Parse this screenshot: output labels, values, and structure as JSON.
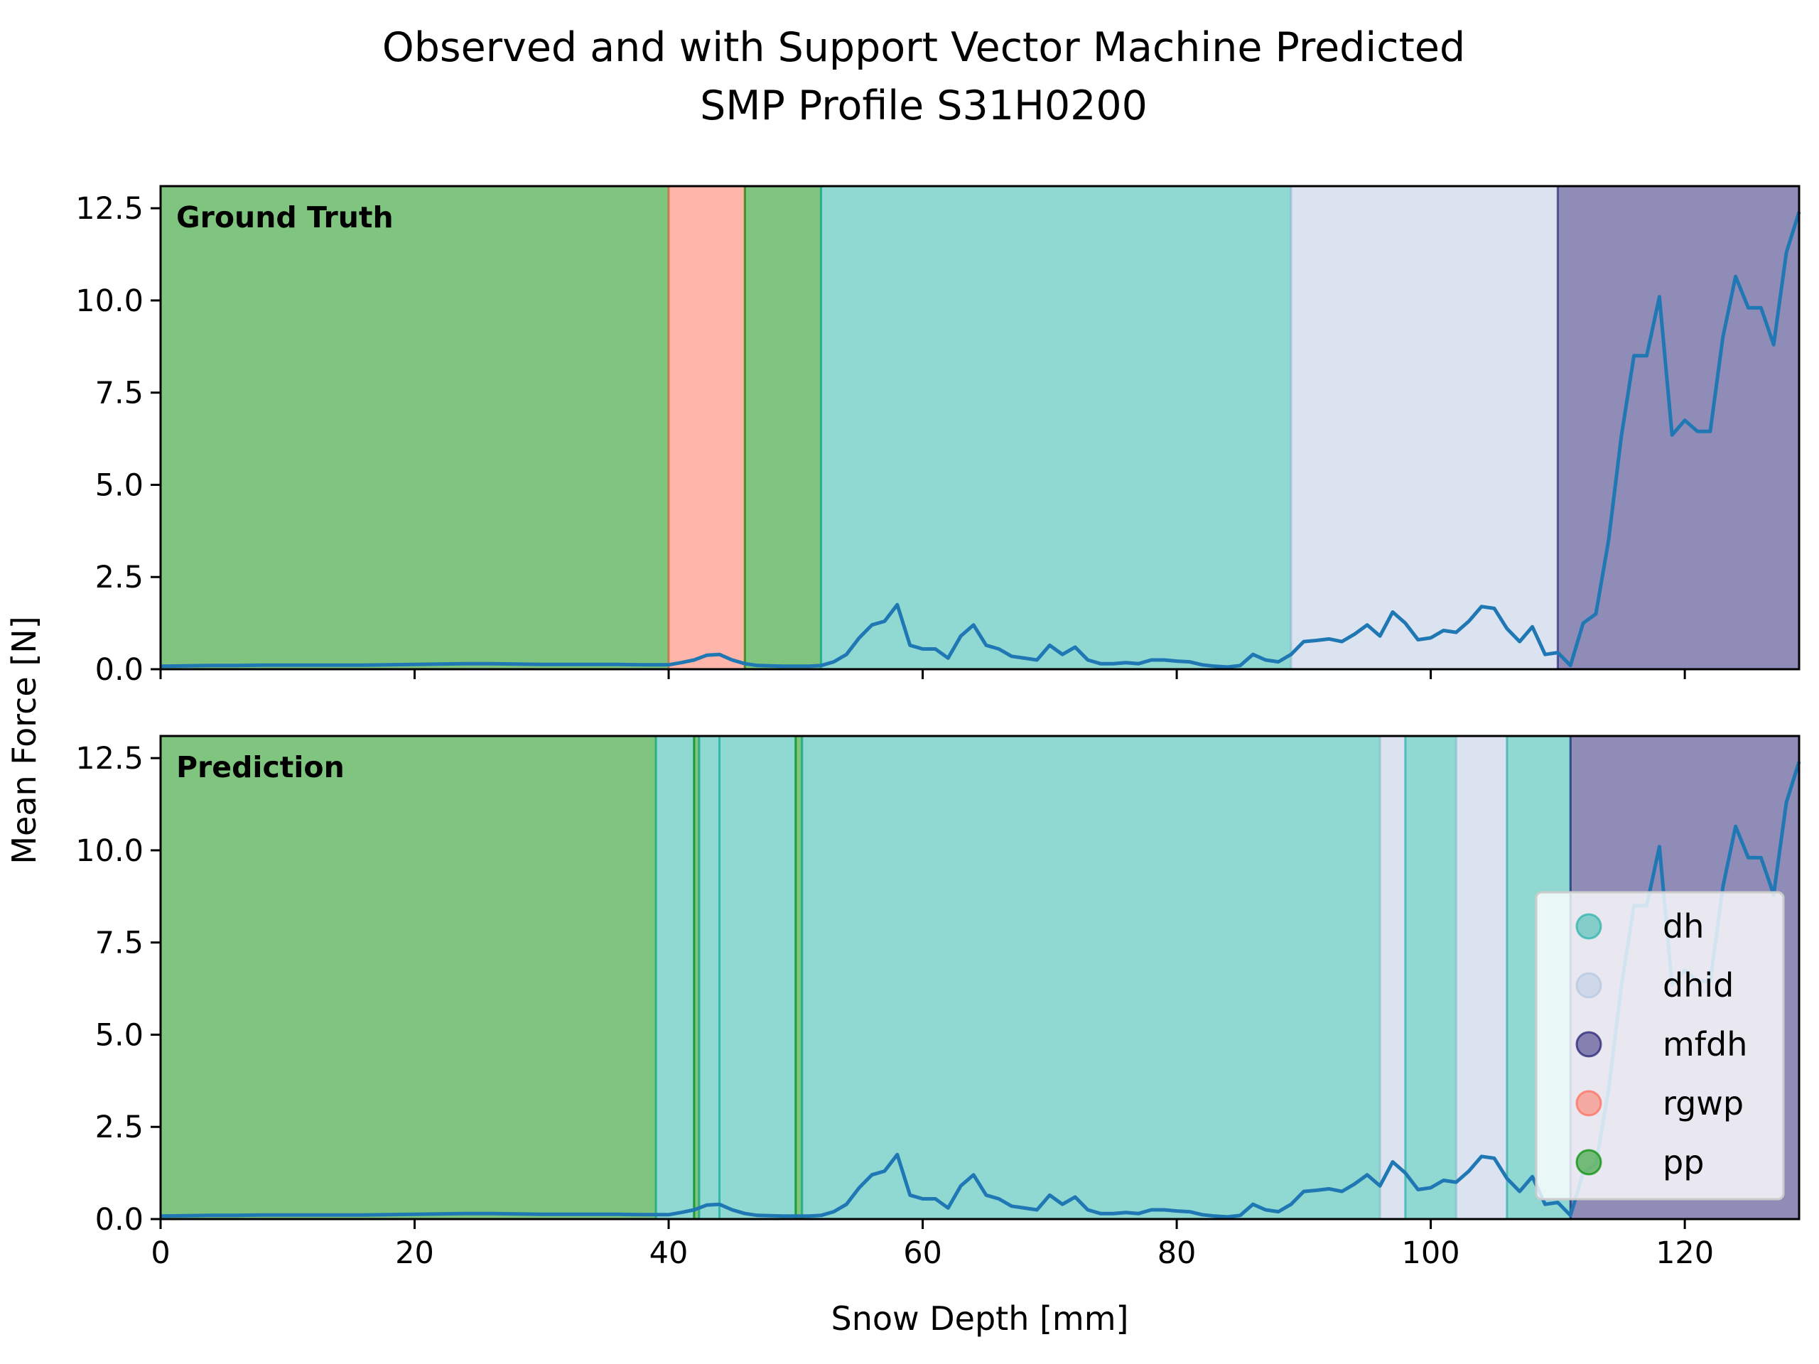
{
  "chart_data": {
    "type": "area",
    "title": "Observed and with Support Vector Machine Predicted",
    "subtitle": "SMP Profile S31H0200",
    "xlabel": "Snow Depth [mm]",
    "ylabel": "Mean Force [N]",
    "xlim": [
      0,
      129
    ],
    "ylim": [
      0,
      13.1
    ],
    "x_ticks": [
      "0",
      "20",
      "40",
      "60",
      "80",
      "100",
      "120"
    ],
    "x_tick_values": [
      0,
      20,
      40,
      60,
      80,
      100,
      120
    ],
    "y_ticks": [
      "0.0",
      "2.5",
      "5.0",
      "7.5",
      "10.0",
      "12.5"
    ],
    "y_tick_values": [
      0,
      2.5,
      5,
      7.5,
      10,
      12.5
    ],
    "grid": false,
    "legend_position": "lower-right",
    "classes": [
      {
        "name": "dh",
        "color": "#22b2a6"
      },
      {
        "name": "dhid",
        "color": "#b5c8df"
      },
      {
        "name": "mfdh",
        "color": "#1f1a71"
      },
      {
        "name": "rgwp",
        "color": "#ff6b55"
      },
      {
        "name": "pp",
        "color": "#008c00"
      }
    ],
    "series": [
      {
        "name": "Mean Force",
        "color": "#1f77b4",
        "x": [
          0,
          2,
          4,
          6,
          8,
          10,
          12,
          14,
          16,
          18,
          20,
          22,
          24,
          26,
          28,
          30,
          32,
          34,
          36,
          38,
          39,
          40,
          41,
          42,
          43,
          44,
          45,
          46,
          47,
          48,
          49,
          50,
          51,
          52,
          53,
          54,
          55,
          56,
          57,
          58,
          59,
          60,
          61,
          62,
          63,
          64,
          65,
          66,
          67,
          68,
          69,
          70,
          71,
          72,
          73,
          74,
          75,
          76,
          77,
          78,
          79,
          80,
          81,
          82,
          83,
          84,
          85,
          86,
          87,
          88,
          89,
          90,
          91,
          92,
          93,
          94,
          95,
          96,
          97,
          98,
          99,
          100,
          101,
          102,
          103,
          104,
          105,
          106,
          107,
          108,
          109,
          110,
          111,
          112,
          113,
          114,
          115,
          116,
          117,
          118,
          119,
          120,
          121,
          122,
          123,
          124,
          125,
          126,
          127,
          128,
          129
        ],
        "y": [
          0.08,
          0.09,
          0.1,
          0.1,
          0.11,
          0.11,
          0.11,
          0.11,
          0.11,
          0.12,
          0.13,
          0.14,
          0.15,
          0.15,
          0.14,
          0.13,
          0.13,
          0.13,
          0.13,
          0.12,
          0.12,
          0.12,
          0.18,
          0.25,
          0.38,
          0.4,
          0.25,
          0.15,
          0.1,
          0.09,
          0.08,
          0.08,
          0.08,
          0.1,
          0.2,
          0.4,
          0.85,
          1.2,
          1.3,
          1.75,
          0.65,
          0.55,
          0.55,
          0.3,
          0.9,
          1.2,
          0.65,
          0.55,
          0.35,
          0.3,
          0.25,
          0.65,
          0.4,
          0.6,
          0.25,
          0.15,
          0.15,
          0.18,
          0.15,
          0.25,
          0.25,
          0.22,
          0.2,
          0.12,
          0.08,
          0.06,
          0.1,
          0.4,
          0.25,
          0.2,
          0.4,
          0.75,
          0.78,
          0.82,
          0.75,
          0.95,
          1.2,
          0.9,
          1.55,
          1.25,
          0.8,
          0.85,
          1.05,
          1.0,
          1.3,
          1.7,
          1.65,
          1.1,
          0.75,
          1.15,
          0.4,
          0.45,
          0.1,
          1.25,
          1.5,
          3.5,
          6.3,
          8.5,
          8.5,
          10.1,
          6.35,
          6.75,
          6.45,
          6.45,
          9.0,
          10.65,
          9.8,
          9.8,
          8.8,
          11.3,
          12.4
        ]
      }
    ],
    "panels": [
      {
        "label": "Ground Truth",
        "segments": [
          {
            "class": "pp",
            "start": 0,
            "end": 40
          },
          {
            "class": "rgwp",
            "start": 40,
            "end": 46
          },
          {
            "class": "pp",
            "start": 46,
            "end": 52
          },
          {
            "class": "dh",
            "start": 52,
            "end": 89
          },
          {
            "class": "dhid",
            "start": 89,
            "end": 110
          },
          {
            "class": "mfdh",
            "start": 110,
            "end": 129
          }
        ]
      },
      {
        "label": "Prediction",
        "segments": [
          {
            "class": "pp",
            "start": 0,
            "end": 39
          },
          {
            "class": "dh",
            "start": 39,
            "end": 42
          },
          {
            "class": "pp",
            "start": 42,
            "end": 42.4
          },
          {
            "class": "dh",
            "start": 42.4,
            "end": 44
          },
          {
            "class": "dh",
            "start": 44,
            "end": 50
          },
          {
            "class": "pp",
            "start": 50,
            "end": 50.5
          },
          {
            "class": "dh",
            "start": 50.5,
            "end": 96
          },
          {
            "class": "dhid",
            "start": 96,
            "end": 98
          },
          {
            "class": "dh",
            "start": 98,
            "end": 102
          },
          {
            "class": "dhid",
            "start": 102,
            "end": 106
          },
          {
            "class": "dh",
            "start": 106,
            "end": 111
          },
          {
            "class": "mfdh",
            "start": 111,
            "end": 129
          }
        ]
      }
    ]
  }
}
